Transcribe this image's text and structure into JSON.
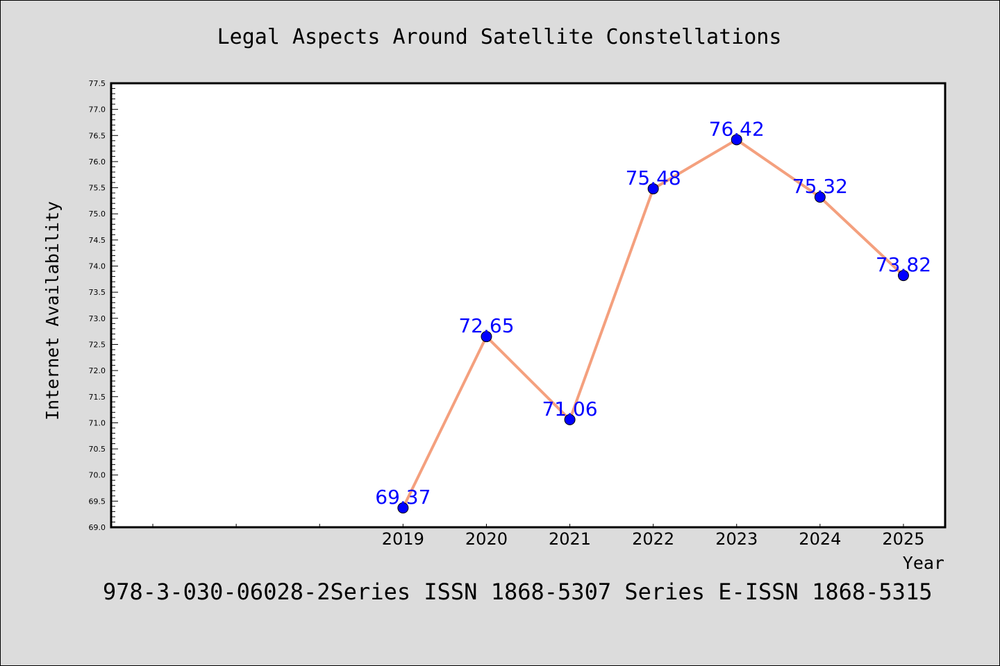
{
  "chart_data": {
    "type": "line",
    "title": "Legal Aspects Around Satellite Constellations",
    "xlabel": "Year",
    "ylabel": "Internet Availability",
    "x": [
      2019,
      2020,
      2021,
      2022,
      2023,
      2024,
      2025
    ],
    "x_tick_labels": [
      "2019",
      "2020",
      "2021",
      "2022",
      "2023",
      "2024",
      "2025"
    ],
    "series": [
      {
        "values": [
          69.37,
          72.65,
          71.06,
          75.48,
          76.42,
          75.32,
          73.82
        ],
        "labels": [
          "69.37",
          "72.65",
          "71.06",
          "75.48",
          "76.42",
          "75.32",
          "73.82"
        ],
        "line_color": "#f4a07e",
        "marker_color": "#0000ff",
        "label_color": "#0000ff"
      }
    ],
    "ylim": [
      69.0,
      77.5
    ],
    "xlim": [
      2015.5,
      2025.5
    ],
    "y_ticks": [
      "69.0",
      "69.5",
      "70.0",
      "70.5",
      "71.0",
      "71.5",
      "72.0",
      "72.5",
      "73.0",
      "73.5",
      "74.0",
      "74.5",
      "75.0",
      "75.5",
      "76.0",
      "76.5",
      "77.0",
      "77.5"
    ],
    "grid": false,
    "footer": "978-3-030-06028-2Series ISSN 1868-5307 Series E-ISSN 1868-5315",
    "background_color": "#dcdcdc",
    "plot_background": "#ffffff"
  }
}
